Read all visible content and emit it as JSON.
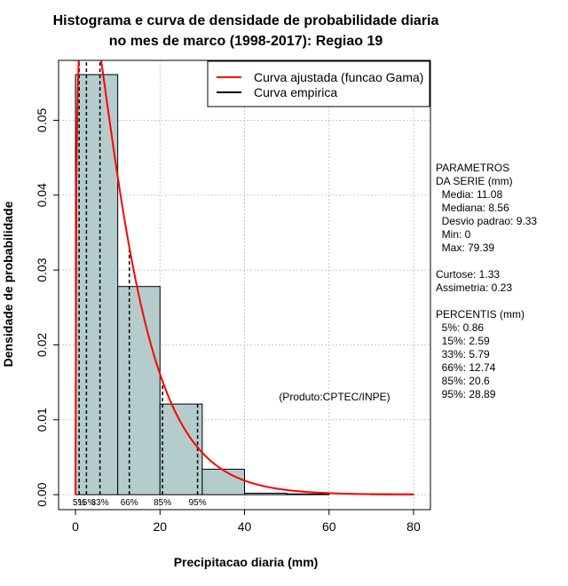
{
  "chart_data": {
    "type": "bar",
    "title": [
      "Histograma e curva de densidade de probabilidade diaria",
      "no mes de marco (1998-2017): Regiao 19"
    ],
    "xlabel": "Precipitacao diaria (mm)",
    "ylabel": "Densidade de probabilidade",
    "xlim": [
      -4,
      84
    ],
    "ylim": [
      -0.002,
      0.058
    ],
    "xticks": [
      0,
      20,
      40,
      60,
      80
    ],
    "yticks": [
      0.0,
      0.01,
      0.02,
      0.03,
      0.04,
      0.05
    ],
    "ytick_labels": [
      "0.00",
      "0.01",
      "0.02",
      "0.03",
      "0.04",
      "0.05"
    ],
    "grid": true,
    "bar_color": "#b4cccc",
    "bins": [
      {
        "from": 0,
        "to": 10,
        "density": 0.0561
      },
      {
        "from": 10,
        "to": 20,
        "density": 0.0278
      },
      {
        "from": 20,
        "to": 30,
        "density": 0.0121
      },
      {
        "from": 30,
        "to": 40,
        "density": 0.0034
      },
      {
        "from": 40,
        "to": 50,
        "density": 0.0002
      },
      {
        "from": 50,
        "to": 60,
        "density": 0.0001
      },
      {
        "from": 60,
        "to": 70,
        "density": 0.0
      },
      {
        "from": 70,
        "to": 80,
        "density": 0.0001
      }
    ],
    "gamma_curve": {
      "name": "Curva ajustada (funcao Gama)",
      "color": "#ff0000",
      "shape": 1.3,
      "scale": 8.5,
      "x_from": 0,
      "x_to": 80
    },
    "empirical_curve": {
      "name": "Curva empirica",
      "color": "#000000"
    },
    "legend": [
      "Curva ajustada (funcao Gama)",
      "Curva empirica"
    ],
    "legend_position": "top-right",
    "percentile_lines": [
      {
        "label": "5%",
        "value": 0.86
      },
      {
        "label": "15%",
        "value": 2.59
      },
      {
        "label": "33%",
        "value": 5.79
      },
      {
        "label": "66%",
        "value": 12.74
      },
      {
        "label": "85%",
        "value": 20.6
      },
      {
        "label": "95%",
        "value": 28.89
      }
    ],
    "annotation": "(Produto:CPTEC/INPE)"
  },
  "side_panel": {
    "lines": [
      "PARAMETROS",
      "DA SERIE (mm)",
      "  Media: 11.08",
      "  Mediana: 8.56",
      "  Desvio padrao: 9.33",
      "  Min: 0",
      "  Max: 79.39",
      "",
      "Curtose: 1.33",
      "Assimetria: 0.23",
      "",
      "PERCENTIS (mm)",
      "  5%: 0.86",
      "  15%: 2.59",
      "  33%: 5.79",
      "  66%: 12.74",
      "  85%: 20.6",
      "  95%: 28.89"
    ]
  }
}
